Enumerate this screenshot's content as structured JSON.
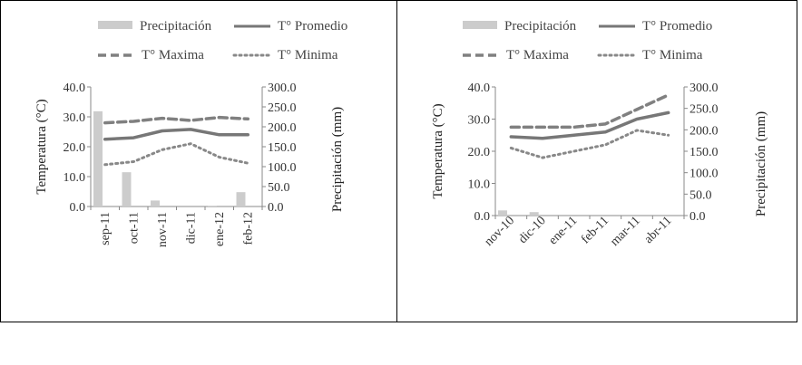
{
  "colors": {
    "bar": "#cccccc",
    "promedio": "#777777",
    "maxima": "#808080",
    "minima": "#888888",
    "axis": "#888888",
    "border": "#000000"
  },
  "chart_data": [
    {
      "type": "bar+line",
      "title": "",
      "ylabel": "Temperatura (°C)",
      "y2label": "Precipitación (mm)",
      "ylim": [
        0,
        40
      ],
      "y2lim": [
        0,
        300
      ],
      "yticks": [
        "0.0",
        "10.0",
        "20.0",
        "30.0",
        "40.0"
      ],
      "y2ticks": [
        "0.0",
        "50.0",
        "100.0",
        "150.0",
        "200.0",
        "250.0",
        "300.0"
      ],
      "categories": [
        "sep-11",
        "oct-11",
        "nov-11",
        "dic-11",
        "ene-12",
        "feb-12"
      ],
      "legend": {
        "precipitacion": "Precipitación",
        "promedio": "T° Promedio",
        "maxima": "T° Maxima",
        "minima": "T° Minima"
      },
      "series": [
        {
          "name": "Precipitación",
          "kind": "bar",
          "axis": "y2",
          "values": [
            239,
            86,
            15,
            0,
            2,
            36
          ]
        },
        {
          "name": "T° Promedio",
          "kind": "line",
          "values": [
            22.5,
            23,
            25.3,
            25.8,
            24,
            24
          ]
        },
        {
          "name": "T° Maxima",
          "kind": "dashed",
          "values": [
            28,
            28.5,
            29.5,
            28.8,
            29.8,
            29.3
          ]
        },
        {
          "name": "T° Minima",
          "kind": "dotted",
          "values": [
            14,
            15,
            19,
            21,
            16.5,
            14.5
          ]
        }
      ]
    },
    {
      "type": "bar+line",
      "title": "",
      "ylabel": "Temperatura (°C)",
      "y2label": "Precipitación (mm)",
      "ylim": [
        0,
        40
      ],
      "y2lim": [
        0,
        300
      ],
      "yticks": [
        "0.0",
        "10.0",
        "20.0",
        "30.0",
        "40.0"
      ],
      "y2ticks": [
        "0.0",
        "50.0",
        "100.0",
        "150.0",
        "200.0",
        "250.0",
        "300.0"
      ],
      "categories": [
        "nov-10",
        "dic-10",
        "ene-11",
        "feb-11",
        "mar-11",
        "abr-11"
      ],
      "legend": {
        "precipitacion": "Precipitación",
        "promedio": "T° Promedio",
        "maxima": "T° Maxima",
        "minima": "T° Minima"
      },
      "series": [
        {
          "name": "Precipitación",
          "kind": "bar",
          "axis": "y2",
          "values": [
            12,
            8,
            0,
            0,
            0,
            0
          ]
        },
        {
          "name": "T° Promedio",
          "kind": "line",
          "values": [
            24.5,
            24,
            25,
            26,
            30,
            32
          ]
        },
        {
          "name": "T° Maxima",
          "kind": "dashed",
          "values": [
            27.5,
            27.5,
            27.5,
            28.5,
            33,
            37.5
          ]
        },
        {
          "name": "T° Minima",
          "kind": "dotted",
          "values": [
            21,
            18,
            20,
            22,
            26.5,
            25
          ]
        }
      ]
    }
  ]
}
